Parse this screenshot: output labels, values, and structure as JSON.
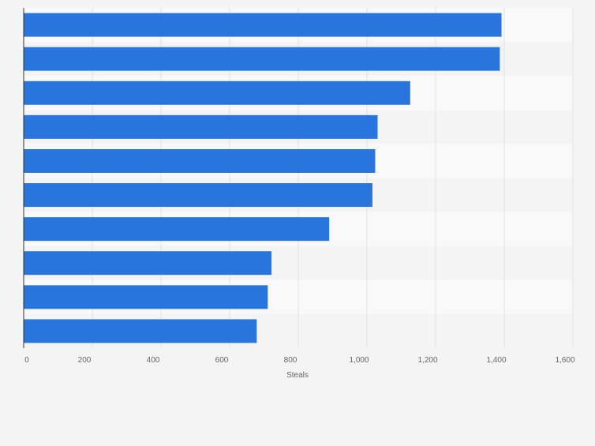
{
  "chart_data": {
    "type": "bar",
    "orientation": "horizontal",
    "categories": [
      "",
      "",
      "",
      "",
      "",
      "",
      "",
      "",
      "",
      ""
    ],
    "values": [
      1392,
      1387,
      1126,
      1031,
      1024,
      1016,
      890,
      722,
      711,
      679
    ],
    "title": "",
    "xlabel": "Steals",
    "ylabel": "",
    "xlim": [
      0,
      1600
    ],
    "x_ticks": [
      0,
      200,
      400,
      600,
      800,
      1000,
      1200,
      1400,
      1600
    ],
    "x_tick_labels": [
      "0",
      "200",
      "400",
      "600",
      "800",
      "1,000",
      "1,200",
      "1,400",
      "1,600"
    ],
    "grid": true,
    "legend": "none",
    "colors": {
      "bar": "#2876dd",
      "background": "#f4f4f4",
      "band_light": "#f9f9f9",
      "band_dark": "#f4f4f4",
      "gridline": "#e2e2e2",
      "axis": "#333333",
      "tick_text": "#666666"
    }
  }
}
